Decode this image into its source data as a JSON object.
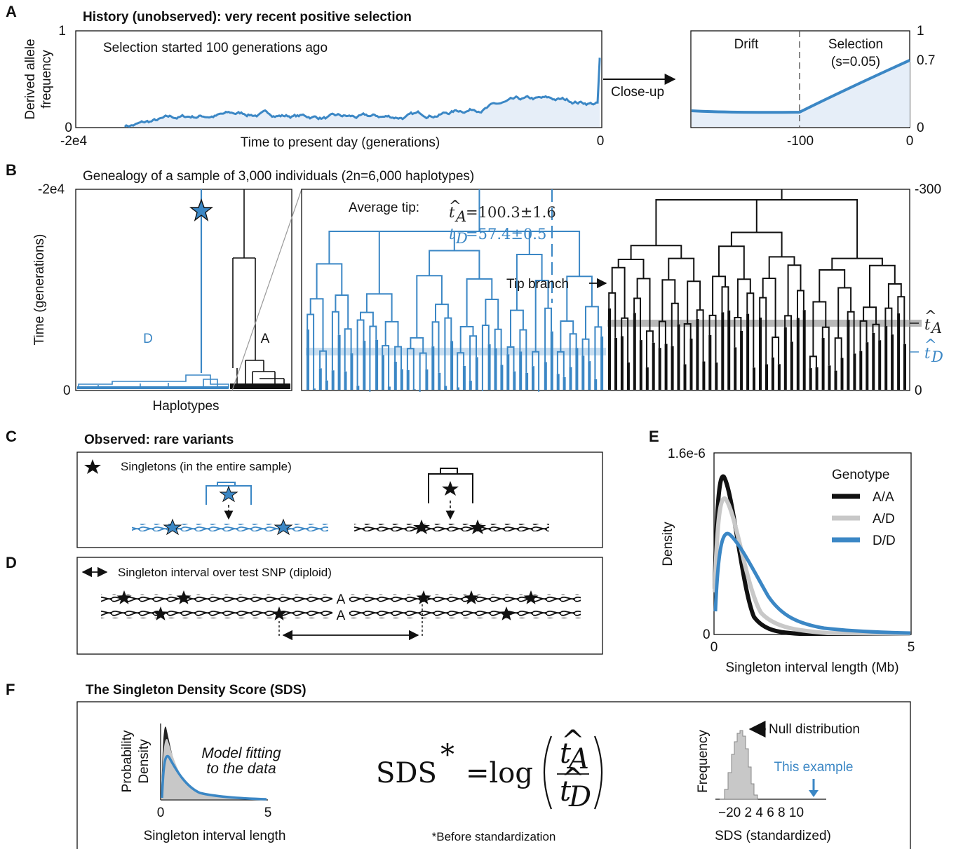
{
  "panelA": {
    "letter": "A",
    "title": "History (unobserved): very recent positive selection",
    "ylabel1": "Derived allele",
    "ylabel2": "frequency",
    "y1": "1",
    "y0": "0",
    "xleft": "-2e4",
    "xright": "0",
    "xlabel": "Time to present day (generations)",
    "annot": "Selection started 100 generations ago",
    "closeup": "Close-up",
    "drift": "Drift",
    "selection": "Selection",
    "sval": "(s=0.05)",
    "r_y1": "1",
    "r_y07": "0.7",
    "r_y0": "0",
    "r_x100": "-100",
    "r_x0": "0"
  },
  "panelB": {
    "letter": "B",
    "title": "Genealogy of a sample of 3,000 individuals (2n=6,000 haplotypes)",
    "y_top": "-2e4",
    "y_bot": "0",
    "ylabel": "Time (generations)",
    "xlabel": "Haplotypes",
    "labelD": "D",
    "labelA": "A",
    "avg": "Average tip:",
    "tA_expr": "=100.3±1.6",
    "tD_expr": "=57.4±0.5",
    "tip_branch": "Tip branch",
    "r_top": "-300",
    "r_bot": "0"
  },
  "panelC": {
    "letter": "C",
    "title": "Observed: rare variants",
    "legend": "Singletons (in the entire sample)"
  },
  "panelD": {
    "letter": "D",
    "legend": "Singleton interval over test SNP (diploid)",
    "allele": "A"
  },
  "panelE": {
    "letter": "E",
    "ymax": "1.6e-6",
    "y0": "0",
    "x0": "0",
    "x5": "5",
    "ylabel": "Density",
    "xlabel": "Singleton interval length (Mb)",
    "legend_title": "Genotype",
    "series": [
      {
        "name": "A/A",
        "color": "#111111"
      },
      {
        "name": "A/D",
        "color": "#c8c8c8"
      },
      {
        "name": "D/D",
        "color": "#3b87c5"
      }
    ]
  },
  "panelF": {
    "letter": "F",
    "title": "The Singleton Density Score (SDS)",
    "ylabel1": "Probability",
    "ylabel2": "Density",
    "model1": "Model fitting",
    "model2": "to the data",
    "x0": "0",
    "x5": "5",
    "xlabel": "Singleton interval length",
    "formula": "SDS",
    "log": "=log",
    "note": "*Before standardization",
    "freq": "Frequency",
    "null": "Null distribution",
    "example": "This example",
    "ticks": "−20 2 4 6 8 10",
    "sds_label": "SDS (standardized)"
  },
  "colors": {
    "blue": "#3b87c5",
    "lightblue": "#e6eef8",
    "gray": "#bdbdbd",
    "black": "#111111"
  }
}
